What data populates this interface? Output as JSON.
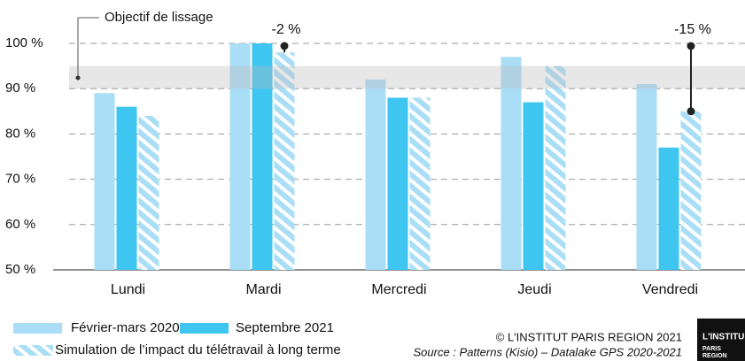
{
  "chart_data": {
    "type": "bar",
    "categories": [
      "Lundi",
      "Mardi",
      "Mercredi",
      "Jeudi",
      "Vendredi"
    ],
    "series": [
      {
        "name": "Février-mars 2020",
        "color": "#a9def6",
        "values": [
          89,
          100,
          92,
          97,
          91
        ]
      },
      {
        "name": "Septembre 2021",
        "color": "#3ec6f0",
        "values": [
          86,
          100,
          88,
          87,
          77
        ]
      },
      {
        "name": "Simulation de l’impact du télétravail à long terme",
        "color": "#a9def6",
        "hatched": true,
        "values": [
          84,
          98,
          88,
          95,
          85
        ]
      }
    ],
    "ylim": [
      50,
      100
    ],
    "yticks": [
      {
        "value": 50,
        "label": "50 %"
      },
      {
        "value": 60,
        "label": "60 %"
      },
      {
        "value": 70,
        "label": "70 %"
      },
      {
        "value": 80,
        "label": "80 %"
      },
      {
        "value": 90,
        "label": "90 %"
      },
      {
        "value": 100,
        "label": "100 %"
      }
    ],
    "grid": true,
    "target_band": {
      "label": "Objectif de lissage",
      "range": [
        90,
        95
      ]
    },
    "annotations": [
      {
        "text": "-2 %",
        "category": "Mardi"
      },
      {
        "text": "-15 %",
        "category": "Vendredi"
      }
    ],
    "copyright": "© L'INSTITUT PARIS REGION 2021",
    "source": "Source : Patterns (Kisio) – Datalake GPS 2020-2021",
    "logo": [
      "L'INSTITU",
      "PARIS",
      "REGION"
    ]
  }
}
